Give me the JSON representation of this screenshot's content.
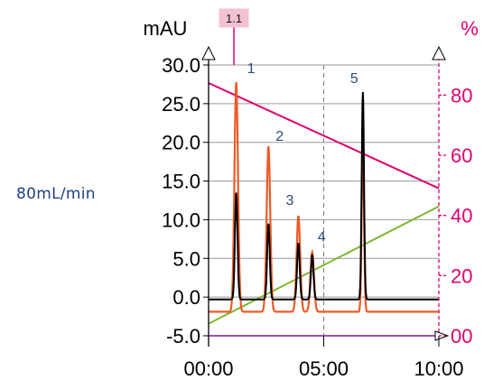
{
  "side_label": "80mL/min",
  "chart_data": {
    "type": "line",
    "title": "",
    "x_ticks": [
      "00:00",
      "05:00",
      "10:00"
    ],
    "x_range": [
      0,
      10
    ],
    "y_left": {
      "unit": "mAU",
      "range": [
        -5,
        30
      ],
      "ticks": [
        "30.0",
        "25.0",
        "20.0",
        "15.0",
        "10.0",
        "5.0",
        "0.0",
        "-5.0"
      ],
      "tick_values": [
        30,
        25,
        20,
        15,
        10,
        5,
        0,
        -5
      ]
    },
    "y_right": {
      "unit": "%",
      "range": [
        0,
        90
      ],
      "ticks": [
        "80",
        "60",
        "40",
        "20",
        "00"
      ],
      "tick_values": [
        80,
        60,
        40,
        20,
        0
      ],
      "color": "#e0006e"
    },
    "marker": {
      "label": "1.1",
      "x": 1.1,
      "color": "#e0006e",
      "fill": "#f4c0d4"
    },
    "grid": true,
    "vertical_dashed_x": 5,
    "peaks": [
      {
        "label": "1",
        "time": 1.2,
        "height_black": 13.5,
        "height_orange": 27.8
      },
      {
        "label": "2",
        "time": 2.6,
        "height_black": 9.5,
        "height_orange": 19.5
      },
      {
        "label": "3",
        "time": 3.9,
        "height_black": 7.0,
        "height_orange": 10.5
      },
      {
        "label": "4",
        "time": 4.5,
        "height_black": 5.5,
        "height_orange": 5.8
      },
      {
        "label": "5",
        "time": 6.7,
        "height_black": 26.5,
        "height_orange": 21.0
      }
    ],
    "series": [
      {
        "id": "black",
        "color": "#000000",
        "baseline": -0.3
      },
      {
        "id": "orange",
        "color": "#ef5a28",
        "baseline": -1.9
      },
      {
        "id": "gradient-pink",
        "color": "#e0006e",
        "axis": "right",
        "x": [
          0,
          10
        ],
        "y": [
          84,
          49
        ]
      },
      {
        "id": "gradient-green",
        "color": "#7cb72b",
        "axis": "right",
        "x": [
          0,
          10
        ],
        "y": [
          4,
          43
        ]
      },
      {
        "id": "base-purple",
        "color": "#9b4fb6",
        "axis": "left",
        "x": [
          0,
          10
        ],
        "y": [
          -5,
          -5
        ]
      }
    ]
  }
}
